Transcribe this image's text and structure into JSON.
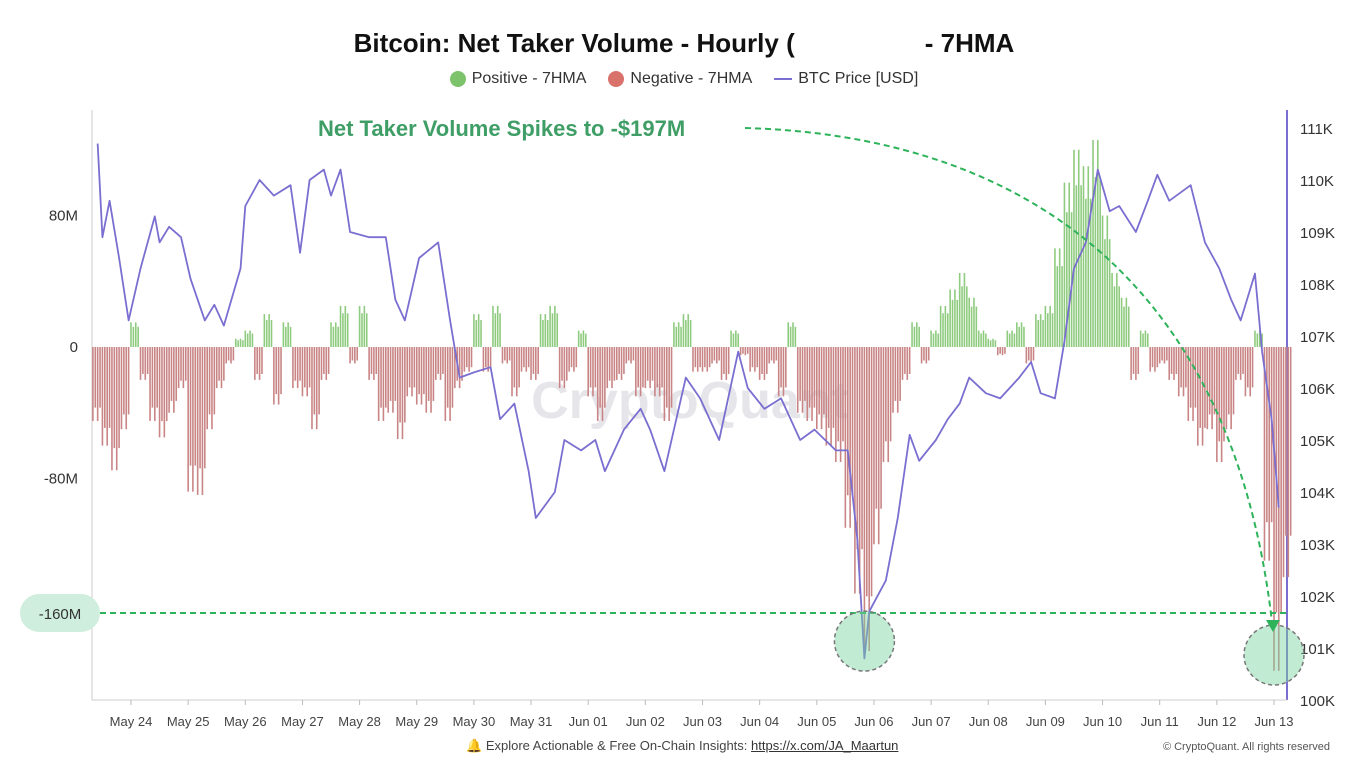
{
  "title": {
    "part1": "Bitcoin: Net Taker Volume - Hourly (",
    "part2": "- 7HMA"
  },
  "legend": [
    {
      "label": "Positive - 7HMA",
      "color": "#7dc36b",
      "shape": "dot"
    },
    {
      "label": "Negative - 7HMA",
      "color": "#d9726b",
      "shape": "dot"
    },
    {
      "label": "BTC Price [USD]",
      "color": "#7a6fd0",
      "shape": "line"
    }
  ],
  "footer": {
    "icon": "bell-icon",
    "text": "Explore Actionable & Free On-Chain Insights: ",
    "link": "https://x.com/JA_Maartun",
    "copyright": "© CryptoQuant. All rights reserved"
  },
  "watermark": "CryptoQuant",
  "chart_data": {
    "type": "bar+line",
    "title": "Bitcoin: Net Taker Volume - Hourly ( - 7HMA",
    "grid": false,
    "legend_position": "top",
    "colors": {
      "positive": "#8fcb7f",
      "negative": "#c98585",
      "price": "#7a6fd0",
      "annotation": "#2fb35a"
    },
    "left_axis": {
      "ticks": [
        80,
        0,
        -80,
        -160
      ],
      "tick_labels": [
        "80M",
        "0",
        "-80M",
        "-160M"
      ],
      "range": [
        -215,
        145
      ],
      "unit": "M"
    },
    "right_axis": {
      "ticks": [
        111000,
        110000,
        109000,
        108000,
        107000,
        106000,
        105000,
        104000,
        103000,
        102000,
        101000,
        100000
      ],
      "tick_labels": [
        "111K",
        "110K",
        "109K",
        "108K",
        "107K",
        "106K",
        "105K",
        "104K",
        "103K",
        "102K",
        "101K",
        "100K"
      ],
      "range": [
        100000,
        111300
      ]
    },
    "x_axis": {
      "tick_labels": [
        "May 24",
        "May 25",
        "May 26",
        "May 27",
        "May 28",
        "May 29",
        "May 30",
        "May 31",
        "Jun 01",
        "Jun 02",
        "Jun 03",
        "Jun 04",
        "Jun 05",
        "Jun 06",
        "Jun 07",
        "Jun 08",
        "Jun 09",
        "Jun 10",
        "Jun 11",
        "Jun 12",
        "Jun 13"
      ]
    },
    "net_taker_volume_M": [
      [
        "May 23 08:00",
        -45
      ],
      [
        "May 23 12:00",
        -60
      ],
      [
        "May 23 16:00",
        -75
      ],
      [
        "May 23 20:00",
        -50
      ],
      [
        "May 24 00:00",
        15
      ],
      [
        "May 24 04:00",
        -20
      ],
      [
        "May 24 08:00",
        -45
      ],
      [
        "May 24 12:00",
        -55
      ],
      [
        "May 24 16:00",
        -40
      ],
      [
        "May 24 20:00",
        -25
      ],
      [
        "May 25 00:00",
        -88
      ],
      [
        "May 25 04:00",
        -90
      ],
      [
        "May 25 08:00",
        -50
      ],
      [
        "May 25 12:00",
        -25
      ],
      [
        "May 25 16:00",
        -10
      ],
      [
        "May 25 20:00",
        5
      ],
      [
        "May 26 00:00",
        10
      ],
      [
        "May 26 04:00",
        -20
      ],
      [
        "May 26 08:00",
        20
      ],
      [
        "May 26 12:00",
        -35
      ],
      [
        "May 26 16:00",
        15
      ],
      [
        "May 26 20:00",
        -25
      ],
      [
        "May 27 00:00",
        -30
      ],
      [
        "May 27 04:00",
        -50
      ],
      [
        "May 27 08:00",
        -20
      ],
      [
        "May 27 12:00",
        15
      ],
      [
        "May 27 16:00",
        25
      ],
      [
        "May 27 20:00",
        -10
      ],
      [
        "May 28 00:00",
        25
      ],
      [
        "May 28 04:00",
        -20
      ],
      [
        "May 28 08:00",
        -45
      ],
      [
        "May 28 12:00",
        -40
      ],
      [
        "May 28 16:00",
        -56
      ],
      [
        "May 28 20:00",
        -30
      ],
      [
        "May 29 00:00",
        -35
      ],
      [
        "May 29 04:00",
        -40
      ],
      [
        "May 29 08:00",
        -20
      ],
      [
        "May 29 12:00",
        -45
      ],
      [
        "May 29 16:00",
        -25
      ],
      [
        "May 29 20:00",
        -15
      ],
      [
        "May 30 00:00",
        20
      ],
      [
        "May 30 04:00",
        -15
      ],
      [
        "May 30 08:00",
        25
      ],
      [
        "May 30 12:00",
        -10
      ],
      [
        "May 30 16:00",
        -30
      ],
      [
        "May 30 20:00",
        -15
      ],
      [
        "May 31 00:00",
        -20
      ],
      [
        "May 31 04:00",
        20
      ],
      [
        "May 31 08:00",
        25
      ],
      [
        "May 31 12:00",
        -25
      ],
      [
        "May 31 16:00",
        -15
      ],
      [
        "May 31 20:00",
        10
      ],
      [
        "Jun 01 00:00",
        -30
      ],
      [
        "Jun 01 04:00",
        -45
      ],
      [
        "Jun 01 08:00",
        -25
      ],
      [
        "Jun 01 12:00",
        -20
      ],
      [
        "Jun 01 16:00",
        -10
      ],
      [
        "Jun 01 20:00",
        -30
      ],
      [
        "Jun 02 00:00",
        -25
      ],
      [
        "Jun 02 04:00",
        -30
      ],
      [
        "Jun 02 08:00",
        -45
      ],
      [
        "Jun 02 12:00",
        15
      ],
      [
        "Jun 02 16:00",
        20
      ],
      [
        "Jun 02 20:00",
        -15
      ],
      [
        "Jun 03 00:00",
        -15
      ],
      [
        "Jun 03 04:00",
        -10
      ],
      [
        "Jun 03 08:00",
        -20
      ],
      [
        "Jun 03 12:00",
        10
      ],
      [
        "Jun 03 16:00",
        -5
      ],
      [
        "Jun 03 20:00",
        -15
      ],
      [
        "Jun 04 00:00",
        -20
      ],
      [
        "Jun 04 04:00",
        -10
      ],
      [
        "Jun 04 08:00",
        -30
      ],
      [
        "Jun 04 12:00",
        15
      ],
      [
        "Jun 04 16:00",
        -40
      ],
      [
        "Jun 04 20:00",
        -45
      ],
      [
        "Jun 05 00:00",
        -50
      ],
      [
        "Jun 05 04:00",
        -60
      ],
      [
        "Jun 05 08:00",
        -70
      ],
      [
        "Jun 05 12:00",
        -110
      ],
      [
        "Jun 05 16:00",
        -150
      ],
      [
        "Jun 05 20:00",
        -185
      ],
      [
        "Jun 06 00:00",
        -120
      ],
      [
        "Jun 06 04:00",
        -70
      ],
      [
        "Jun 06 08:00",
        -40
      ],
      [
        "Jun 06 12:00",
        -20
      ],
      [
        "Jun 06 16:00",
        15
      ],
      [
        "Jun 06 20:00",
        -10
      ],
      [
        "Jun 07 00:00",
        10
      ],
      [
        "Jun 07 04:00",
        25
      ],
      [
        "Jun 07 08:00",
        35
      ],
      [
        "Jun 07 12:00",
        45
      ],
      [
        "Jun 07 16:00",
        30
      ],
      [
        "Jun 07 20:00",
        10
      ],
      [
        "Jun 08 00:00",
        5
      ],
      [
        "Jun 08 04:00",
        -5
      ],
      [
        "Jun 08 08:00",
        10
      ],
      [
        "Jun 08 12:00",
        15
      ],
      [
        "Jun 08 16:00",
        -10
      ],
      [
        "Jun 08 20:00",
        20
      ],
      [
        "Jun 09 00:00",
        25
      ],
      [
        "Jun 09 04:00",
        60
      ],
      [
        "Jun 09 08:00",
        100
      ],
      [
        "Jun 09 12:00",
        120
      ],
      [
        "Jun 09 16:00",
        110
      ],
      [
        "Jun 09 20:00",
        126
      ],
      [
        "Jun 10 00:00",
        80
      ],
      [
        "Jun 10 04:00",
        45
      ],
      [
        "Jun 10 08:00",
        30
      ],
      [
        "Jun 10 12:00",
        -20
      ],
      [
        "Jun 10 16:00",
        10
      ],
      [
        "Jun 10 20:00",
        -15
      ],
      [
        "Jun 11 00:00",
        -10
      ],
      [
        "Jun 11 04:00",
        -20
      ],
      [
        "Jun 11 08:00",
        -30
      ],
      [
        "Jun 11 12:00",
        -45
      ],
      [
        "Jun 11 16:00",
        -60
      ],
      [
        "Jun 11 20:00",
        -50
      ],
      [
        "Jun 12 00:00",
        -70
      ],
      [
        "Jun 12 04:00",
        -50
      ],
      [
        "Jun 12 08:00",
        -20
      ],
      [
        "Jun 12 12:00",
        -30
      ],
      [
        "Jun 12 16:00",
        10
      ],
      [
        "Jun 12 20:00",
        -130
      ],
      [
        "Jun 13 00:00",
        -197
      ],
      [
        "Jun 13 04:00",
        -140
      ]
    ],
    "btc_price_usd": [
      [
        "May 23 10:00",
        110700
      ],
      [
        "May 23 12:00",
        108900
      ],
      [
        "May 23 15:00",
        109600
      ],
      [
        "May 23 19:00",
        108500
      ],
      [
        "May 23 23:00",
        107300
      ],
      [
        "May 24 04:00",
        108300
      ],
      [
        "May 24 10:00",
        109300
      ],
      [
        "May 24 12:00",
        108800
      ],
      [
        "May 24 16:00",
        109100
      ],
      [
        "May 24 21:00",
        108900
      ],
      [
        "May 25 01:00",
        108100
      ],
      [
        "May 25 07:00",
        107300
      ],
      [
        "May 25 11:00",
        107600
      ],
      [
        "May 25 15:00",
        107200
      ],
      [
        "May 25 22:00",
        108300
      ],
      [
        "May 26 00:00",
        109500
      ],
      [
        "May 26 06:00",
        110000
      ],
      [
        "May 26 12:00",
        109700
      ],
      [
        "May 26 19:00",
        109900
      ],
      [
        "May 26 23:00",
        108600
      ],
      [
        "May 27 03:00",
        110000
      ],
      [
        "May 27 09:00",
        110200
      ],
      [
        "May 27 12:00",
        109700
      ],
      [
        "May 27 16:00",
        110200
      ],
      [
        "May 27 20:00",
        109000
      ],
      [
        "May 28 04:00",
        108900
      ],
      [
        "May 28 11:00",
        108900
      ],
      [
        "May 28 15:00",
        107700
      ],
      [
        "May 28 19:00",
        107300
      ],
      [
        "May 29 01:00",
        108500
      ],
      [
        "May 29 09:00",
        108800
      ],
      [
        "May 29 14:00",
        107300
      ],
      [
        "May 29 18:00",
        106200
      ],
      [
        "May 30 00:00",
        106300
      ],
      [
        "May 30 07:00",
        106400
      ],
      [
        "May 30 11:00",
        105400
      ],
      [
        "May 30 17:00",
        105700
      ],
      [
        "May 30 23:00",
        104400
      ],
      [
        "May 31 02:00",
        103500
      ],
      [
        "May 31 10:00",
        104000
      ],
      [
        "May 31 14:00",
        105000
      ],
      [
        "May 31 21:00",
        104800
      ],
      [
        "Jun 01 03:00",
        105000
      ],
      [
        "Jun 01 07:00",
        104400
      ],
      [
        "Jun 01 15:00",
        105200
      ],
      [
        "Jun 01 22:00",
        105600
      ],
      [
        "Jun 02 02:00",
        105200
      ],
      [
        "Jun 02 08:00",
        104400
      ],
      [
        "Jun 02 17:00",
        106200
      ],
      [
        "Jun 02 23:00",
        105800
      ],
      [
        "Jun 03 07:00",
        105000
      ],
      [
        "Jun 03 15:00",
        106700
      ],
      [
        "Jun 03 19:00",
        106000
      ],
      [
        "Jun 04 02:00",
        105600
      ],
      [
        "Jun 04 09:00",
        105800
      ],
      [
        "Jun 04 17:00",
        105000
      ],
      [
        "Jun 04 23:00",
        105200
      ],
      [
        "Jun 05 08:00",
        104800
      ],
      [
        "Jun 05 13:00",
        104800
      ],
      [
        "Jun 05 17:00",
        103100
      ],
      [
        "Jun 05 20:00",
        100800
      ],
      [
        "Jun 05 22:00",
        101700
      ],
      [
        "Jun 06 05:00",
        102300
      ],
      [
        "Jun 06 10:00",
        103500
      ],
      [
        "Jun 06 15:00",
        105100
      ],
      [
        "Jun 06 19:00",
        104600
      ],
      [
        "Jun 07 02:00",
        105000
      ],
      [
        "Jun 07 07:00",
        105400
      ],
      [
        "Jun 07 12:00",
        105700
      ],
      [
        "Jun 07 16:00",
        106200
      ],
      [
        "Jun 07 23:00",
        105900
      ],
      [
        "Jun 08 05:00",
        105800
      ],
      [
        "Jun 08 13:00",
        106200
      ],
      [
        "Jun 08 18:00",
        106500
      ],
      [
        "Jun 08 22:00",
        105900
      ],
      [
        "Jun 09 04:00",
        105800
      ],
      [
        "Jun 09 08:00",
        106900
      ],
      [
        "Jun 09 12:00",
        108300
      ],
      [
        "Jun 09 17:00",
        108800
      ],
      [
        "Jun 09 22:00",
        110200
      ],
      [
        "Jun 10 03:00",
        109400
      ],
      [
        "Jun 10 07:00",
        109500
      ],
      [
        "Jun 10 14:00",
        109000
      ],
      [
        "Jun 10 19:00",
        109600
      ],
      [
        "Jun 10 23:00",
        110100
      ],
      [
        "Jun 11 04:00",
        109600
      ],
      [
        "Jun 11 13:00",
        109900
      ],
      [
        "Jun 11 19:00",
        108800
      ],
      [
        "Jun 12 01:00",
        108300
      ],
      [
        "Jun 12 06:00",
        107700
      ],
      [
        "Jun 12 10:00",
        107300
      ],
      [
        "Jun 12 16:00",
        108200
      ],
      [
        "Jun 12 19:00",
        106700
      ],
      [
        "Jun 12 23:00",
        105400
      ],
      [
        "Jun 13 02:00",
        103700
      ]
    ],
    "annotations": {
      "headline": "Net Taker Volume Spikes to -$197M",
      "reference_line": {
        "value": -160,
        "label": "-160M"
      },
      "highlighted_points": [
        {
          "time": "Jun 05 20:00",
          "value": -185
        },
        {
          "time": "Jun 13 00:00",
          "value": -197
        }
      ]
    }
  }
}
